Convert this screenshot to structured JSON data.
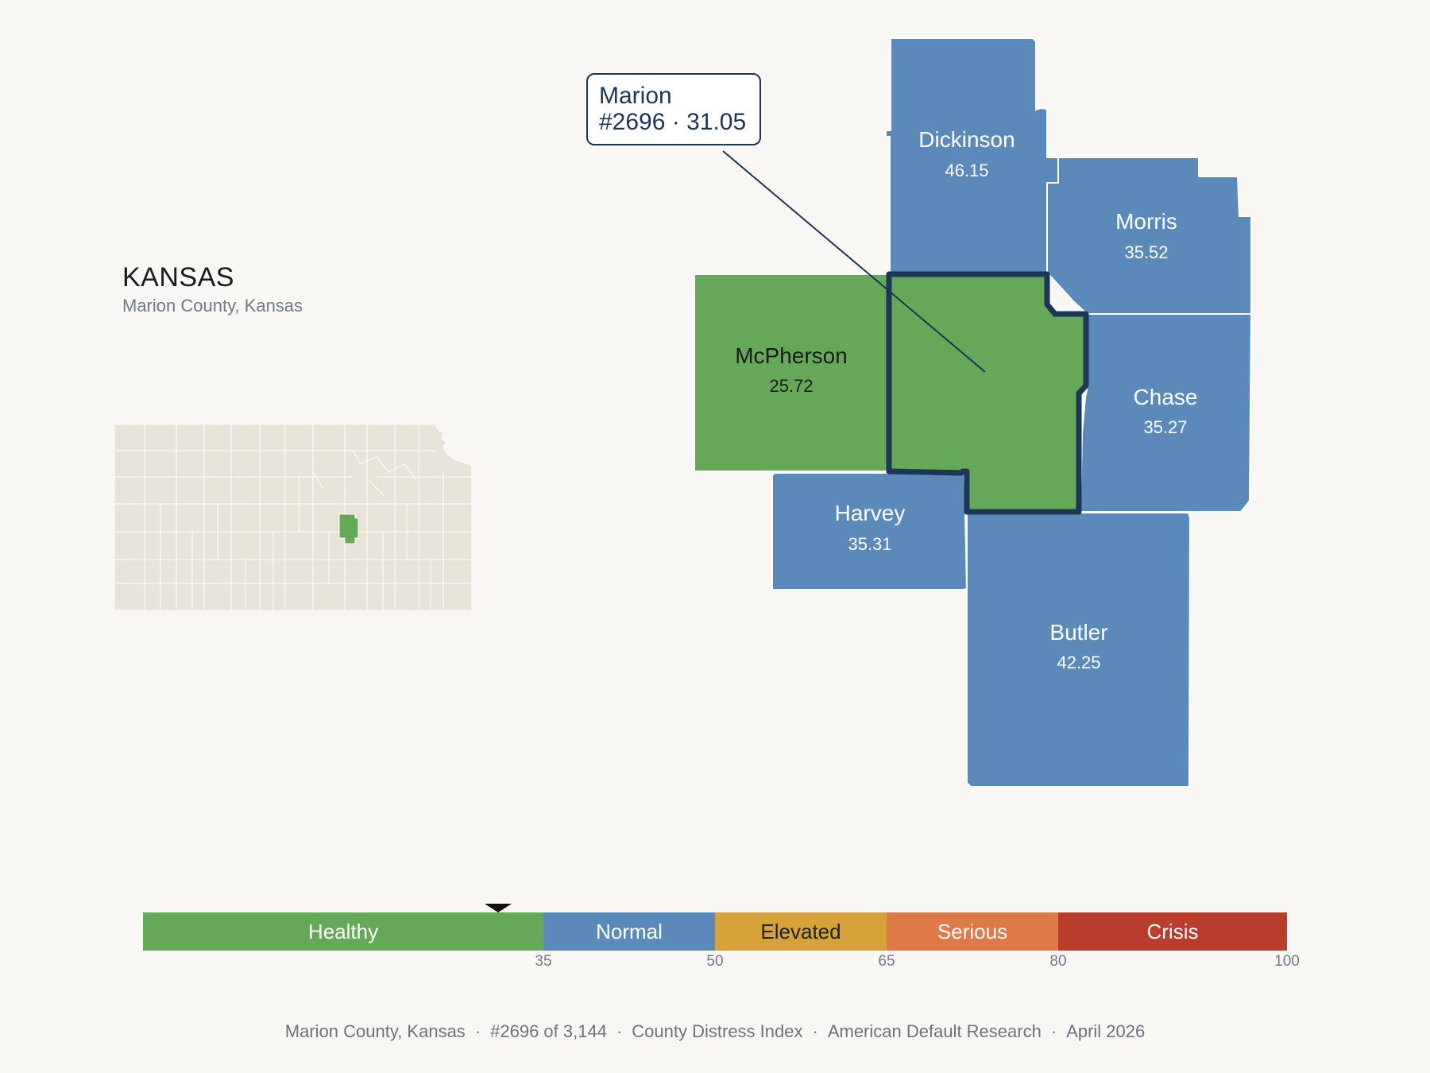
{
  "state": {
    "title": "KANSAS",
    "subtitle": "Marion County, Kansas"
  },
  "highlight": {
    "name": "Marion",
    "rank_score": "#2696 · 31.05"
  },
  "counties": [
    {
      "id": "dickinson",
      "name": "Dickinson",
      "value": "46.15",
      "category": "Normal"
    },
    {
      "id": "morris",
      "name": "Morris",
      "value": "35.52",
      "category": "Normal"
    },
    {
      "id": "mcpherson",
      "name": "McPherson",
      "value": "25.72",
      "category": "Healthy"
    },
    {
      "id": "chase",
      "name": "Chase",
      "value": "35.27",
      "category": "Normal"
    },
    {
      "id": "harvey",
      "name": "Harvey",
      "value": "35.31",
      "category": "Normal"
    },
    {
      "id": "butler",
      "name": "Butler",
      "value": "42.25",
      "category": "Normal"
    },
    {
      "id": "marion",
      "name": "Marion",
      "value": "31.05",
      "category": "Healthy"
    }
  ],
  "legend": {
    "segments": [
      {
        "label": "Healthy",
        "from": 0,
        "to": 35,
        "color": "#65a857",
        "text_color": "#ffffff"
      },
      {
        "label": "Normal",
        "from": 35,
        "to": 50,
        "color": "#5b8aba",
        "text_color": "#ffffff"
      },
      {
        "label": "Elevated",
        "from": 50,
        "to": 65,
        "color": "#d6a23a",
        "text_color": "#222222"
      },
      {
        "label": "Serious",
        "from": 65,
        "to": 80,
        "color": "#dd7a48",
        "text_color": "#ffffff"
      },
      {
        "label": "Crisis",
        "from": 80,
        "to": 100,
        "color": "#b93c2c",
        "text_color": "#ffffff"
      }
    ],
    "ticks": [
      "35",
      "50",
      "65",
      "80",
      "100"
    ],
    "marker_value": 31.05
  },
  "colors": {
    "healthy": "#65a857",
    "normal": "#5b8aba",
    "highlight_border": "#1d3557",
    "inset_fill": "#e8e3d8",
    "background": "#f9f7f4"
  },
  "footer": {
    "location": "Marion County, Kansas",
    "rank": "#2696 of 3,144",
    "index": "County Distress Index",
    "source": "American Default Research",
    "date": "April 2026"
  }
}
